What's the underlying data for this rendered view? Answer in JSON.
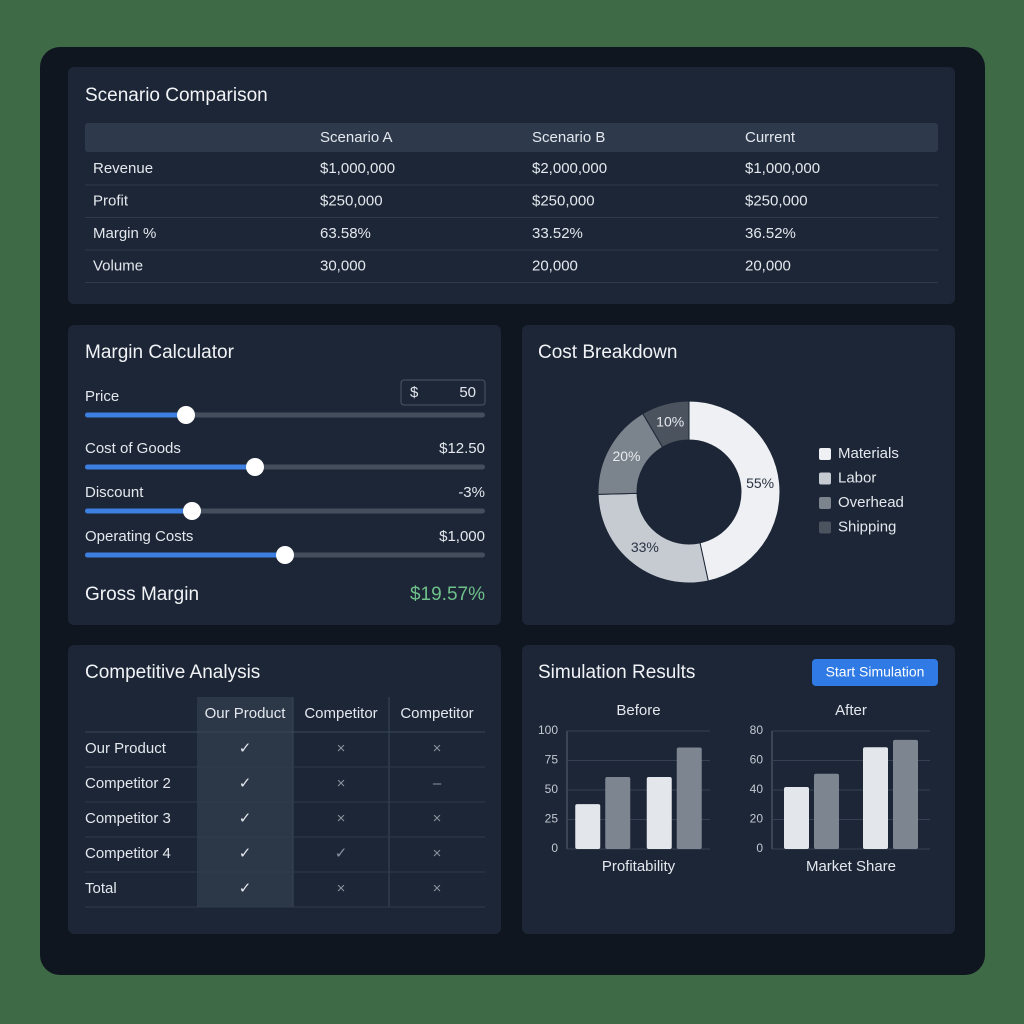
{
  "scenario": {
    "title": "Scenario Comparison",
    "header": [
      "Scenario A",
      "Scenario B",
      "Current"
    ],
    "rows": [
      [
        "Revenue",
        "$1,000,000",
        "$2,000,000",
        "$1,000,000"
      ],
      [
        "Profit",
        "$250,000",
        "$250,000",
        "$250,000"
      ],
      [
        "Margin %",
        "63.58%",
        "33.52%",
        "36.52%"
      ],
      [
        "Volume",
        "30,000",
        "20,000",
        "20,000"
      ]
    ]
  },
  "margin": {
    "title": "Margin Calculator",
    "price": {
      "label": "Price",
      "currency": "$",
      "value": "50"
    },
    "sliders": [
      {
        "label": "Cost of Goods",
        "value": "$12.50"
      },
      {
        "label": "Discount",
        "value": "-3%"
      },
      {
        "label": "Operating Costs",
        "value": "$1,000"
      }
    ],
    "result": {
      "label": "Gross Margin",
      "value": "$19.57%"
    }
  },
  "competitive": {
    "title": "Competitive Analysis",
    "header": [
      "Our Product",
      "Competitor",
      "Competitor"
    ],
    "rows": [
      [
        "Our Product",
        "✓",
        "×",
        "×"
      ],
      [
        "Competitor 2",
        "✓",
        "×",
        "–"
      ],
      [
        "Competitor 3",
        "✓",
        "×",
        "×"
      ],
      [
        "Competitor 4",
        "✓",
        "✓",
        "×"
      ],
      [
        "Total",
        "✓",
        "×",
        "×"
      ]
    ]
  },
  "simulation": {
    "title": "Simulation Results",
    "button": "Start Simulation"
  },
  "chart_data": [
    {
      "type": "pie",
      "title": "Cost Breakdown",
      "categories": [
        "Materials",
        "Labor",
        "Overhead",
        "Shipping"
      ],
      "values": [
        55,
        33,
        20,
        10
      ],
      "value_labels": [
        "55%",
        "33%",
        "20%",
        "10%"
      ],
      "colors": [
        "#eef0f3",
        "#c6cbd2",
        "#7b838d",
        "#4b535e"
      ],
      "donut": true
    },
    {
      "type": "bar",
      "title": "Before",
      "x_label": "Profitability",
      "categories": [
        null,
        null
      ],
      "series": [
        {
          "color": "#e3e6eb",
          "values": [
            38,
            61
          ]
        },
        {
          "color": "#7d8590",
          "values": [
            61,
            86
          ]
        }
      ],
      "ylim": [
        0,
        100
      ],
      "yticks": [
        0,
        25,
        50,
        75,
        100
      ],
      "grid": true
    },
    {
      "type": "bar",
      "title": "After",
      "x_label": "Market Share",
      "categories": [
        null,
        null
      ],
      "series": [
        {
          "color": "#e3e6eb",
          "values": [
            42,
            69
          ]
        },
        {
          "color": "#7d8590",
          "values": [
            51,
            74
          ]
        }
      ],
      "ylim": [
        0,
        80
      ],
      "yticks": [
        0,
        20,
        40,
        60,
        80
      ],
      "grid": true
    }
  ]
}
